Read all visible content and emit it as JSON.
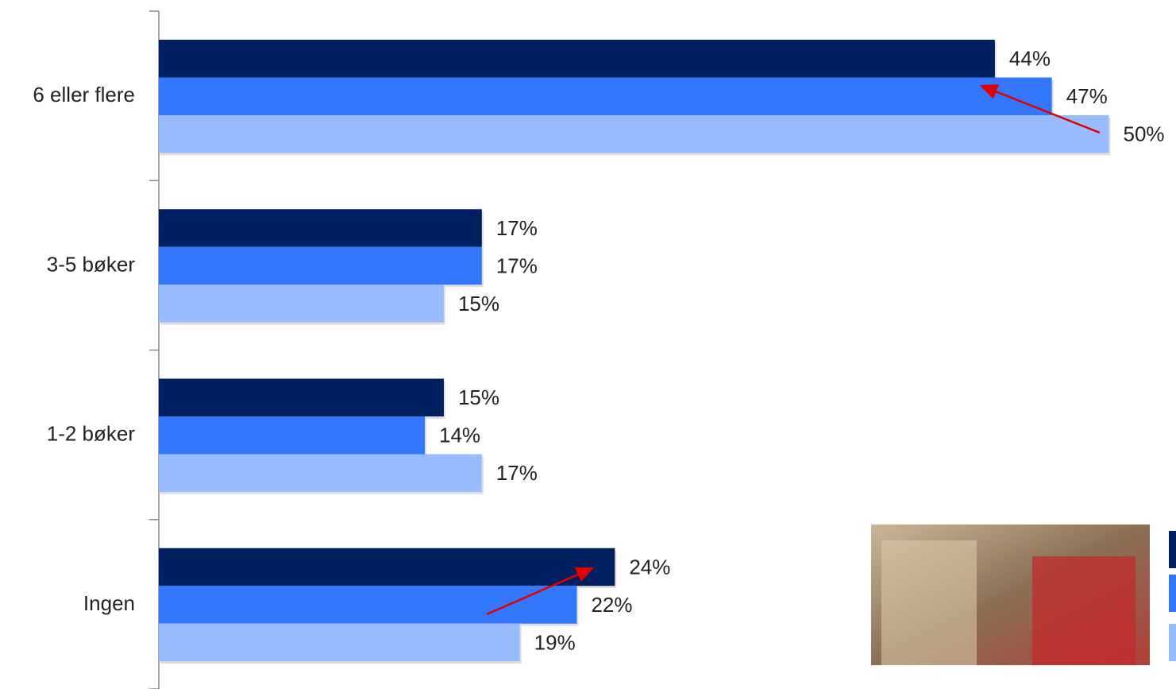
{
  "chart_data": {
    "type": "bar",
    "orientation": "horizontal",
    "categories": [
      "6 eller flere",
      "3-5 bøker",
      "1-2 bøker",
      "Ingen"
    ],
    "series": [
      {
        "color": "#002060",
        "values": [
          44,
          17,
          15,
          24
        ],
        "value_labels": [
          "44%",
          "17%",
          "15%",
          "24%"
        ]
      },
      {
        "color": "#3377ff",
        "values": [
          47,
          17,
          14,
          22
        ],
        "value_labels": [
          "47%",
          "17%",
          "14%",
          "22%"
        ]
      },
      {
        "color": "#99bbff",
        "values": [
          50,
          15,
          17,
          19
        ],
        "value_labels": [
          "50%",
          "15%",
          "17%",
          "19%"
        ]
      }
    ]
  }
}
